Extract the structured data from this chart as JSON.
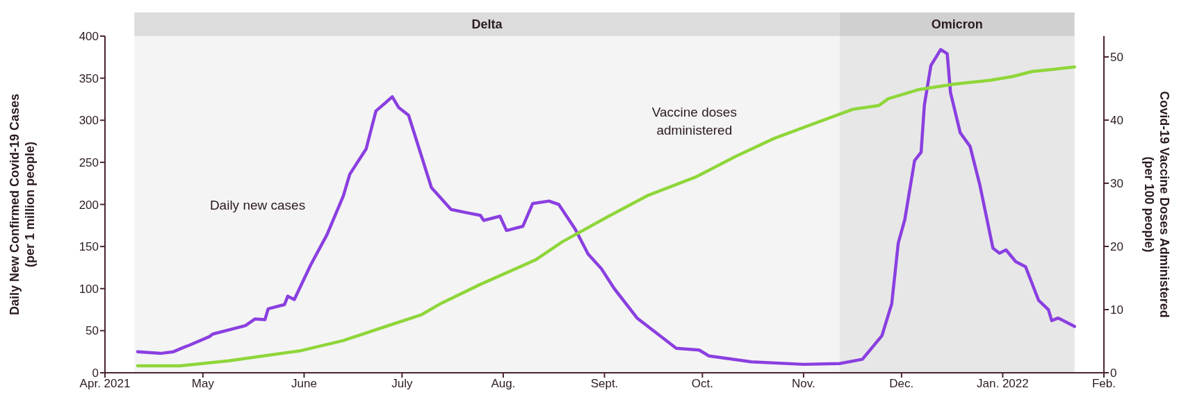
{
  "chart_data": {
    "type": "line",
    "ylabel": "Daily New Confirmed Covid-19 Cases\n(per 1 million people)",
    "y2label": "Covid-19 Vaccine Doses Administered\n(per 100 people)",
    "xlim": [
      "2021-04-01",
      "2022-02-01"
    ],
    "xticks": [
      {
        "value": "2021-04-01",
        "label": "Apr. 2021"
      },
      {
        "value": "2021-05-01",
        "label": "May"
      },
      {
        "value": "2021-06-01",
        "label": "June"
      },
      {
        "value": "2021-07-01",
        "label": "July"
      },
      {
        "value": "2021-08-01",
        "label": "Aug."
      },
      {
        "value": "2021-09-01",
        "label": "Sept."
      },
      {
        "value": "2021-10-01",
        "label": "Oct."
      },
      {
        "value": "2021-11-01",
        "label": "Nov."
      },
      {
        "value": "2021-12-01",
        "label": "Dec."
      },
      {
        "value": "2022-01-01",
        "label": "Jan. 2022"
      },
      {
        "value": "2022-02-01",
        "label": "Feb."
      }
    ],
    "ylim": [
      0,
      400
    ],
    "yticks": [
      0,
      50,
      100,
      150,
      200,
      250,
      300,
      350,
      400
    ],
    "y2lim": [
      0,
      53.3
    ],
    "y2ticks": [
      0,
      10,
      20,
      30,
      40,
      50
    ],
    "bands": [
      {
        "axis": "x",
        "from": "2021-04-10",
        "to": "2021-11-12",
        "label": "Delta",
        "color": "#f4f4f4"
      },
      {
        "axis": "x",
        "from": "2021-11-12",
        "to": "2022-01-23",
        "label": "Omicron",
        "color": "#e7e7e7"
      }
    ],
    "series": [
      {
        "name": "Daily new cases",
        "color": "#8a3fe0",
        "x": [
          "2021-04-11",
          "2021-04-18",
          "2021-04-22",
          "2021-04-25",
          "2021-04-27",
          "2021-05-03",
          "2021-05-04",
          "2021-05-14",
          "2021-05-17",
          "2021-05-20",
          "2021-05-21",
          "2021-05-26",
          "2021-05-27",
          "2021-05-29",
          "2021-06-03",
          "2021-06-08",
          "2021-06-13",
          "2021-06-15",
          "2021-06-20",
          "2021-06-23",
          "2021-06-26",
          "2021-06-28",
          "2021-06-30",
          "2021-07-03",
          "2021-07-10",
          "2021-07-16",
          "2021-07-21",
          "2021-07-25",
          "2021-07-26",
          "2021-07-31",
          "2021-08-02",
          "2021-08-07",
          "2021-08-10",
          "2021-08-15",
          "2021-08-18",
          "2021-08-23",
          "2021-08-27",
          "2021-08-31",
          "2021-09-04",
          "2021-09-11",
          "2021-09-21",
          "2021-09-23",
          "2021-09-30",
          "2021-10-03",
          "2021-10-16",
          "2021-11-01",
          "2021-11-12",
          "2021-11-19",
          "2021-11-25",
          "2021-11-28",
          "2021-11-30",
          "2021-12-02",
          "2021-12-05",
          "2021-12-07",
          "2021-12-08",
          "2021-12-10",
          "2021-12-13",
          "2021-12-15",
          "2021-12-16",
          "2021-12-19",
          "2021-12-22",
          "2021-12-25",
          "2021-12-29",
          "2021-12-31",
          "2022-01-02",
          "2022-01-05",
          "2022-01-08",
          "2022-01-12",
          "2022-01-15",
          "2022-01-16",
          "2022-01-18",
          "2022-01-23"
        ],
        "values": [
          25,
          23,
          25,
          30,
          33,
          43,
          46,
          56,
          64,
          63,
          76,
          81,
          91,
          87,
          128,
          164,
          210,
          236,
          266,
          311,
          321,
          328,
          315,
          306,
          220,
          194,
          190,
          187,
          181,
          186,
          169,
          174,
          201,
          204,
          200,
          171,
          141,
          124,
          100,
          65,
          35,
          29,
          27,
          20,
          13,
          10,
          11,
          16,
          44,
          82,
          154,
          182,
          252,
          262,
          318,
          365,
          384,
          379,
          333,
          285,
          269,
          223,
          148,
          142,
          146,
          132,
          126,
          86,
          75,
          62,
          65,
          55
        ]
      },
      {
        "name": "Vaccine doses administered",
        "color": "#8fd63a",
        "axis": "y2",
        "x": [
          "2021-04-11",
          "2021-04-24",
          "2021-05-09",
          "2021-05-31",
          "2021-06-13",
          "2021-06-27",
          "2021-07-07",
          "2021-07-13",
          "2021-07-25",
          "2021-08-11",
          "2021-08-19",
          "2021-09-02",
          "2021-09-14",
          "2021-09-29",
          "2021-10-11",
          "2021-10-23",
          "2021-11-04",
          "2021-11-16",
          "2021-11-24",
          "2021-11-27",
          "2021-12-06",
          "2021-12-17",
          "2021-12-28",
          "2022-01-04",
          "2022-01-10",
          "2022-01-23"
        ],
        "values": [
          1.1,
          1.1,
          1.9,
          3.5,
          5.1,
          7.5,
          9.2,
          11,
          14,
          17.9,
          20.7,
          24.7,
          28,
          31,
          34.2,
          37.1,
          39.4,
          41.7,
          42.3,
          43.4,
          44.8,
          45.7,
          46.3,
          46.9,
          47.7,
          48.4
        ]
      }
    ]
  }
}
